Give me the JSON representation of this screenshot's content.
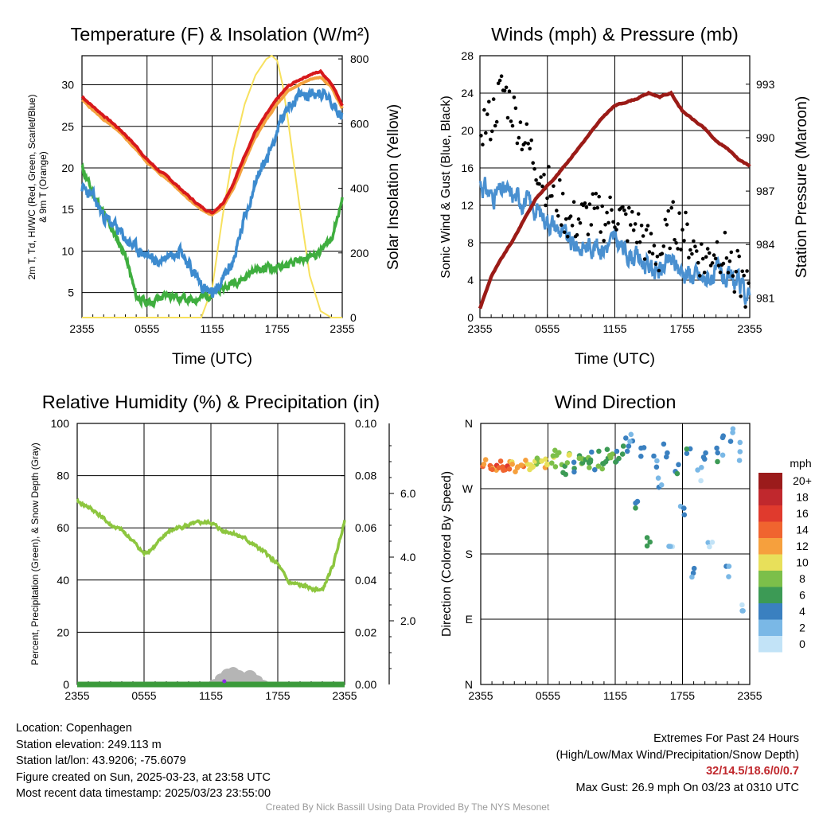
{
  "chart_data": [
    {
      "id": "temp",
      "type": "line",
      "title": "Temperature (F) & Insolation (W/m²)",
      "xlabel": "Time (UTC)",
      "ylabel_left": "2m T, Td, HI/WC (Red, Green, Scarlet/Blue) & 9m T (Orange)",
      "ylabel_right": "Solar Insolation (Yellow)",
      "x_ticks": [
        "2355",
        "0555",
        "1155",
        "1755",
        "2355"
      ],
      "y_left_ticks": [
        5,
        10,
        15,
        20,
        25,
        30
      ],
      "y_left_range": [
        2,
        33.5
      ],
      "y_right_ticks": [
        0,
        200,
        400,
        600,
        800
      ],
      "y_right_range": [
        0,
        810
      ],
      "x_range_hours": [
        0,
        24
      ],
      "grid": true,
      "colors": {
        "temp2m": "#d7191c",
        "temp9m": "#f4a340",
        "heat_index": "#e8613c",
        "wind_chill": "#3d8bcf",
        "dewpoint": "#3fae3f",
        "solar": "#f7e15e"
      },
      "series": [
        {
          "name": "2m T",
          "color": "#d7191c",
          "x": [
            0,
            1,
            2,
            3,
            4,
            5,
            6,
            7,
            8,
            9,
            10,
            11,
            12,
            13,
            14,
            15,
            16,
            17,
            18,
            19,
            20,
            21,
            22,
            23,
            24
          ],
          "values": [
            28.6,
            27.4,
            26.3,
            25.2,
            24.0,
            22.6,
            21.0,
            19.8,
            18.8,
            17.6,
            16.4,
            15.3,
            14.6,
            15.8,
            18.2,
            21.5,
            24.4,
            26.4,
            28.3,
            29.8,
            30.6,
            31.2,
            31.6,
            30.2,
            27.6
          ]
        },
        {
          "name": "9m T",
          "color": "#f4a340",
          "x": [
            0,
            1,
            2,
            3,
            4,
            5,
            6,
            7,
            8,
            9,
            10,
            11,
            12,
            13,
            14,
            15,
            16,
            17,
            18,
            19,
            20,
            21,
            22,
            23,
            24
          ],
          "values": [
            28.2,
            27.0,
            25.8,
            24.8,
            23.6,
            22.2,
            20.7,
            19.5,
            18.5,
            17.3,
            16.1,
            15.0,
            14.3,
            15.4,
            17.6,
            20.8,
            23.7,
            25.8,
            27.7,
            29.2,
            30.0,
            30.6,
            30.9,
            29.7,
            27.2
          ]
        },
        {
          "name": "Wind Chill",
          "color": "#3d8bcf",
          "x": [
            0,
            1,
            2,
            3,
            4,
            5,
            6,
            7,
            8,
            9,
            10,
            11,
            12,
            13,
            14,
            15,
            16,
            17,
            18,
            19,
            20,
            21,
            22,
            23,
            24
          ],
          "values": [
            17.6,
            16.5,
            14.2,
            13.0,
            11.5,
            10.3,
            9.5,
            8.6,
            9.6,
            10.5,
            8.0,
            6.0,
            4.5,
            6.5,
            9.0,
            14.0,
            18.5,
            21.0,
            24.5,
            27.5,
            28.5,
            29.0,
            29.2,
            28.0,
            26.5
          ]
        },
        {
          "name": "Dewpoint",
          "color": "#3fae3f",
          "x": [
            0,
            1,
            2,
            3,
            4,
            5,
            6,
            7,
            8,
            9,
            10,
            11,
            12,
            13,
            14,
            15,
            16,
            17,
            18,
            19,
            20,
            21,
            22,
            23,
            24
          ],
          "values": [
            20.0,
            17.0,
            14.5,
            12.0,
            9.5,
            4.5,
            3.8,
            4.2,
            4.8,
            4.5,
            4.0,
            4.5,
            4.8,
            5.5,
            6.3,
            6.8,
            7.8,
            8.0,
            8.0,
            8.2,
            8.7,
            9.3,
            10.0,
            11.5,
            16.2
          ]
        },
        {
          "name": "Solar Insolation",
          "axis": "right",
          "color": "#f7e15e",
          "x": [
            0,
            11,
            12,
            13,
            14,
            15,
            16,
            17,
            17.5,
            18,
            18.5,
            19,
            20,
            21,
            22,
            23,
            24
          ],
          "values": [
            0,
            0,
            90,
            320,
            520,
            660,
            750,
            800,
            810,
            795,
            720,
            610,
            360,
            130,
            20,
            0,
            0
          ]
        }
      ]
    },
    {
      "id": "wind",
      "type": "line",
      "title": "Winds (mph) & Pressure (mb)",
      "xlabel": "Time (UTC)",
      "ylabel_left": "Sonic Wind & Gust (Blue, Black)",
      "ylabel_right": "Station Pressure (Maroon)",
      "x_ticks": [
        "2355",
        "0555",
        "1155",
        "1755",
        "2355"
      ],
      "y_left_ticks": [
        0,
        4,
        8,
        12,
        16,
        20,
        24,
        28
      ],
      "y_left_range": [
        0,
        28
      ],
      "y_right_ticks": [
        981,
        984,
        987,
        990,
        993
      ],
      "y_right_range": [
        979.9,
        994.6
      ],
      "x_range_hours": [
        0,
        24
      ],
      "grid": true,
      "colors": {
        "wind": "#4a90d0",
        "gust": "#000000",
        "pressure": "#9b1b17"
      },
      "series": [
        {
          "name": "Sonic Wind",
          "color": "#4a90d0",
          "x": [
            0,
            1,
            2,
            3,
            4,
            5,
            6,
            7,
            8,
            9,
            10,
            11,
            12,
            13,
            14,
            15,
            16,
            17,
            18,
            19,
            20,
            21,
            22,
            23,
            24
          ],
          "values": [
            14.5,
            13.0,
            13.5,
            13.0,
            12.5,
            11.5,
            10.5,
            9.5,
            8.0,
            7.5,
            7.8,
            7.5,
            8.3,
            7.0,
            6.5,
            5.5,
            5.0,
            6.0,
            5.0,
            4.5,
            4.0,
            4.8,
            4.0,
            3.5,
            2.0
          ]
        },
        {
          "name": "Gust",
          "color": "#000000",
          "x": [
            0,
            1,
            2,
            3,
            4,
            5,
            6,
            7,
            8,
            9,
            10,
            11,
            12,
            13,
            14,
            15,
            16,
            17,
            18,
            19,
            20,
            21,
            22,
            23,
            24
          ],
          "values": [
            20.5,
            21.0,
            24.5,
            22.0,
            19.0,
            16.5,
            14.0,
            12.5,
            10.0,
            10.5,
            11.0,
            10.5,
            11.3,
            10.0,
            9.5,
            7.5,
            6.5,
            10.0,
            9.5,
            7.5,
            6.0,
            7.5,
            6.5,
            4.5,
            2.5
          ]
        },
        {
          "name": "Station Pressure",
          "axis": "right",
          "color": "#9b1b17",
          "x": [
            0,
            1,
            2,
            3,
            4,
            5,
            6,
            7,
            8,
            9,
            10,
            11,
            12,
            13,
            14,
            15,
            16,
            17,
            18,
            19,
            20,
            21,
            22,
            23,
            24
          ],
          "values": [
            980.4,
            982.2,
            983.3,
            984.3,
            985.5,
            986.6,
            987.3,
            988.0,
            988.8,
            989.6,
            990.4,
            991.2,
            991.8,
            992.0,
            992.2,
            992.5,
            992.3,
            992.5,
            991.5,
            991.0,
            990.5,
            989.8,
            989.4,
            988.8,
            988.4
          ]
        }
      ]
    },
    {
      "id": "rh",
      "type": "line",
      "title": "Relative Humidity (%) & Precipitation (in)",
      "ylabel_left": "Percent, Precipitation (Green), & Snow Depth (Gray)",
      "x_ticks": [
        "2355",
        "0555",
        "1155",
        "1755",
        "2355"
      ],
      "y_left_ticks": [
        0,
        20,
        40,
        60,
        80,
        100
      ],
      "y_left_range": [
        0,
        100
      ],
      "y_right_ticks": [
        "0.00",
        "0.02",
        "0.04",
        "0.06",
        "0.08",
        "0.10"
      ],
      "y_right_range": [
        0,
        0.1
      ],
      "y_outer_ticks": [
        "2.0",
        "4.0",
        "6.0"
      ],
      "y_outer_range": [
        0,
        8.2
      ],
      "x_range_hours": [
        0,
        24
      ],
      "grid": true,
      "colors": {
        "rh": "#8dc63f",
        "precip": "#3b9a3b",
        "snow": "#b5b5b5",
        "marker": "#8a2be2"
      },
      "series": [
        {
          "name": "Relative Humidity",
          "color": "#8dc63f",
          "x": [
            0,
            1,
            2,
            3,
            4,
            5,
            6,
            7,
            8,
            9,
            10,
            11,
            12,
            13,
            14,
            15,
            16,
            17,
            18,
            19,
            20,
            21,
            22,
            23,
            24
          ],
          "values": [
            70,
            68,
            65,
            61,
            59,
            55,
            50,
            53,
            58,
            60,
            61,
            62,
            62,
            59,
            58,
            56,
            53,
            50,
            46,
            39,
            38,
            37,
            36,
            46,
            63
          ]
        },
        {
          "name": "Precipitation",
          "color": "#3b9a3b",
          "x": [
            0,
            24
          ],
          "values": [
            0,
            0
          ]
        },
        {
          "name": "Snow Depth",
          "color": "#b5b5b5",
          "x": [
            12.5,
            13,
            13.5,
            14,
            14.5,
            15,
            15.5,
            16,
            16.5
          ],
          "values": [
            0.15,
            0.35,
            0.5,
            0.55,
            0.45,
            0.35,
            0.45,
            0.3,
            0.1
          ]
        }
      ]
    },
    {
      "id": "dir",
      "type": "scatter",
      "title": "Wind Direction",
      "ylabel_left": "Direction (Colored By Speed)",
      "x_ticks": [
        "2355",
        "0555",
        "1155",
        "1755",
        "2355"
      ],
      "y_left_ticks": [
        "N",
        "E",
        "S",
        "W",
        "N"
      ],
      "y_left_range": [
        0,
        360
      ],
      "x_range_hours": [
        0,
        24
      ],
      "grid": true,
      "legend": {
        "title": "mph",
        "placement": "right",
        "labels": [
          "20+",
          "18",
          "16",
          "14",
          "12",
          "10",
          "8",
          "6",
          "4",
          "2",
          "0"
        ],
        "colors": [
          "#9b1b1b",
          "#c0282d",
          "#e03a2d",
          "#f0642f",
          "#f6a03d",
          "#e8e05a",
          "#7cbf4a",
          "#3c9a55",
          "#3a80c0",
          "#7ab8e6",
          "#c2e3f7"
        ]
      },
      "series": [
        {
          "name": "Direction",
          "x": [
            0.3,
            0.8,
            1.2,
            1.6,
            2.0,
            2.4,
            2.8,
            3.2,
            3.6,
            4.0,
            4.4,
            4.8,
            5.2,
            5.6,
            6.0,
            6.4,
            6.8,
            7.2,
            7.6,
            8.0,
            8.4,
            8.8,
            9.2,
            9.6,
            10.0,
            10.4,
            10.8,
            11.2,
            11.6,
            12.0,
            12.5,
            13.0,
            13.5,
            14.0,
            14.5,
            15.0,
            15.5,
            16.0,
            16.5,
            17.0,
            17.5,
            18.0,
            18.5,
            19.0,
            19.5,
            20.0,
            20.5,
            21.0,
            21.5,
            22.0,
            22.5,
            23.0,
            23.5
          ],
          "values": [
            305,
            302,
            300,
            304,
            301,
            300,
            303,
            299,
            301,
            305,
            302,
            306,
            308,
            304,
            306,
            310,
            309,
            306,
            303,
            305,
            304,
            308,
            307,
            305,
            306,
            310,
            304,
            315,
            318,
            312,
            325,
            332,
            330,
            255,
            322,
            200,
            308,
            270,
            325,
            185,
            305,
            240,
            320,
            150,
            290,
            320,
            185,
            315,
            330,
            150,
            340,
            320,
            100
          ],
          "speeds": [
            13,
            14,
            12,
            15,
            13,
            14,
            12,
            12,
            13,
            11,
            10,
            9,
            10,
            11,
            10,
            9,
            8,
            8,
            7,
            8,
            6,
            7,
            7,
            8,
            6,
            6,
            7,
            6,
            7,
            5,
            6,
            4,
            3,
            5,
            3,
            6,
            4,
            3,
            4,
            2,
            5,
            3,
            4,
            3,
            2,
            4,
            2,
            5,
            3,
            2,
            3,
            2,
            1
          ]
        }
      ]
    }
  ],
  "info": {
    "location": "Location: Copenhagen",
    "elevation": "Station elevation: 249.113 m",
    "latlon": "Station lat/lon: 43.9206; -75.6079",
    "created": "Figure created on Sun, 2025-03-23, at 23:58 UTC",
    "latest": "Most recent data timestamp: 2025/03/23 23:55:00"
  },
  "extremes": {
    "title": "Extremes For Past 24 Hours",
    "subtitle": "(High/Low/Max Wind/Precipitation/Snow Depth)",
    "values": "32/14.5/18.6/0/0.7",
    "gust": "Max Gust: 26.9 mph On 03/23 at 0310 UTC"
  },
  "credit": "Created By Nick Bassill Using Data Provided By The NYS Mesonet"
}
